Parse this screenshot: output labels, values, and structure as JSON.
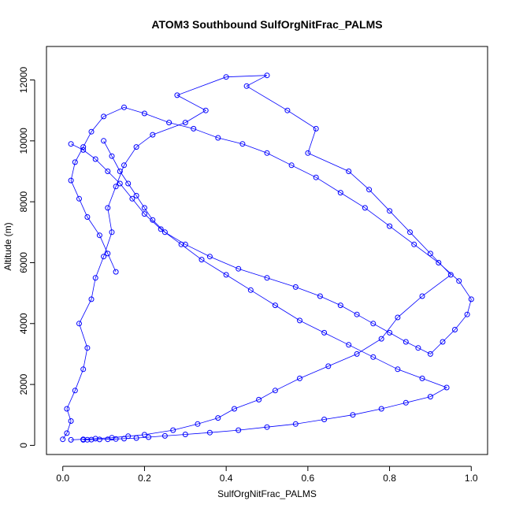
{
  "chart_data": {
    "type": "scatter",
    "title": "ATOM3 Southbound SulfOrgNitFrac_PALMS",
    "xlabel": "SulfOrgNitFrac_PALMS",
    "ylabel": "Altitude (m)",
    "xlim": [
      -0.04,
      1.04
    ],
    "ylim": [
      -300,
      13100
    ],
    "x_ticks": [
      0.0,
      0.2,
      0.4,
      0.6,
      0.8,
      1.0
    ],
    "x_tick_labels": [
      "0.0",
      "0.2",
      "0.4",
      "0.6",
      "0.8",
      "1.0"
    ],
    "y_ticks": [
      0,
      2000,
      4000,
      6000,
      8000,
      10000,
      12000
    ],
    "y_tick_labels": [
      "0",
      "2000",
      "4000",
      "6000",
      "8000",
      "10000",
      "12000"
    ],
    "grid": false,
    "legend": "none",
    "marker": "open-circle",
    "connect_points": true,
    "color": "#0000ff",
    "series": [
      {
        "x": [
          0.0,
          0.01,
          0.02,
          0.01,
          0.03,
          0.05,
          0.06,
          0.04,
          0.07,
          0.08,
          0.1,
          0.12,
          0.11,
          0.13,
          0.15,
          0.18,
          0.22,
          0.3,
          0.35,
          0.28,
          0.4,
          0.5,
          0.45,
          0.55,
          0.62,
          0.6,
          0.7,
          0.75,
          0.8,
          0.85,
          0.9,
          0.95,
          0.88,
          0.82,
          0.78,
          0.72,
          0.65,
          0.58,
          0.52,
          0.48,
          0.42,
          0.38,
          0.33,
          0.27,
          0.2,
          0.16,
          0.12,
          0.08,
          0.05,
          0.02
        ],
        "y": [
          200,
          400,
          800,
          1200,
          1800,
          2500,
          3200,
          4000,
          4800,
          5500,
          6200,
          7000,
          7800,
          8500,
          9200,
          9800,
          10200,
          10600,
          11000,
          11500,
          12100,
          12150,
          11800,
          11000,
          10400,
          9600,
          9000,
          8400,
          7700,
          7000,
          6300,
          5600,
          4900,
          4200,
          3500,
          3000,
          2600,
          2200,
          1800,
          1500,
          1200,
          900,
          700,
          500,
          350,
          300,
          250,
          220,
          200,
          180
        ]
      },
      {
        "x": [
          0.1,
          0.12,
          0.14,
          0.16,
          0.18,
          0.2,
          0.22,
          0.25,
          0.3,
          0.36,
          0.43,
          0.5,
          0.57,
          0.63,
          0.68,
          0.72,
          0.76,
          0.8,
          0.84,
          0.87,
          0.9,
          0.93,
          0.96,
          0.99,
          1.0,
          0.97,
          0.92,
          0.86,
          0.8,
          0.74,
          0.68,
          0.62,
          0.56,
          0.5,
          0.44,
          0.38,
          0.32,
          0.26,
          0.2,
          0.15,
          0.1,
          0.07,
          0.05,
          0.03,
          0.02,
          0.04,
          0.06,
          0.09,
          0.11,
          0.13
        ],
        "y": [
          10000,
          9500,
          9000,
          8600,
          8200,
          7800,
          7400,
          7000,
          6600,
          6200,
          5800,
          5500,
          5200,
          4900,
          4600,
          4300,
          4000,
          3700,
          3400,
          3200,
          3000,
          3400,
          3800,
          4300,
          4800,
          5400,
          6000,
          6600,
          7200,
          7800,
          8300,
          8800,
          9200,
          9600,
          9900,
          10100,
          10400,
          10600,
          10900,
          11100,
          10800,
          10300,
          9800,
          9300,
          8700,
          8100,
          7500,
          6900,
          6300,
          5700
        ]
      },
      {
        "x": [
          0.02,
          0.05,
          0.08,
          0.11,
          0.14,
          0.17,
          0.2,
          0.24,
          0.29,
          0.34,
          0.4,
          0.46,
          0.52,
          0.58,
          0.64,
          0.7,
          0.76,
          0.82,
          0.88,
          0.94,
          0.9,
          0.84,
          0.78,
          0.71,
          0.64,
          0.57,
          0.5,
          0.43,
          0.36,
          0.3,
          0.25,
          0.21,
          0.18,
          0.15,
          0.13,
          0.11,
          0.09,
          0.07,
          0.06,
          0.05
        ],
        "y": [
          9900,
          9700,
          9400,
          9000,
          8600,
          8100,
          7600,
          7100,
          6600,
          6100,
          5600,
          5100,
          4600,
          4100,
          3700,
          3300,
          2900,
          2500,
          2200,
          1900,
          1600,
          1400,
          1200,
          1000,
          850,
          700,
          600,
          500,
          420,
          360,
          310,
          270,
          240,
          220,
          210,
          200,
          195,
          190,
          185,
          180
        ]
      }
    ]
  }
}
